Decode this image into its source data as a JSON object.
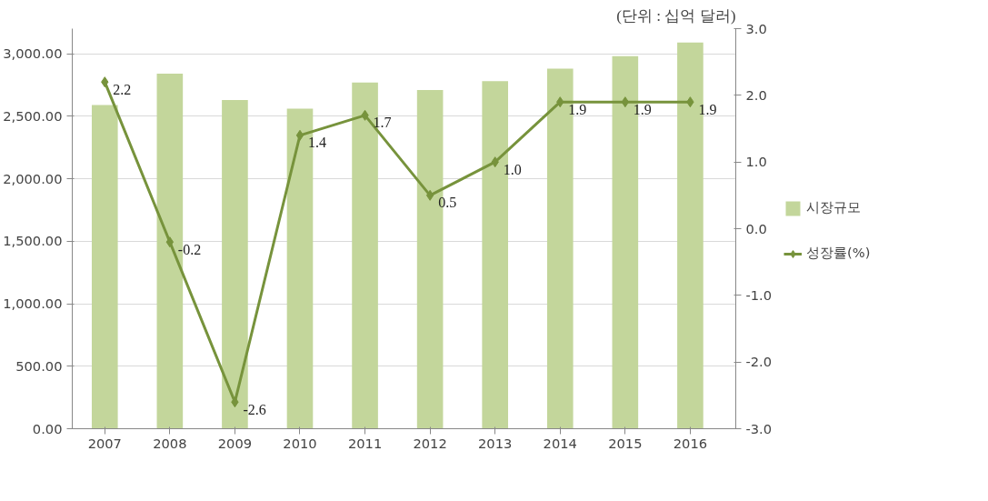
{
  "chart_data": {
    "type": "bar",
    "categories": [
      "2007",
      "2008",
      "2009",
      "2010",
      "2011",
      "2012",
      "2013",
      "2014",
      "2015",
      "2016"
    ],
    "series": [
      {
        "name": "시장규모",
        "color": "#c3d69b",
        "values": [
          2590,
          2840,
          2630,
          2560,
          2770,
          2710,
          2780,
          2880,
          2980,
          3090
        ]
      },
      {
        "name": "성장률(%)",
        "type": "line",
        "axis": "y2",
        "color": "#77933c",
        "marker": "diamond",
        "values": [
          2.2,
          -0.2,
          -2.6,
          1.4,
          1.7,
          0.5,
          1.0,
          1.9,
          1.9,
          1.9
        ],
        "value_labels": [
          "2.2",
          "-0.2",
          "-2.6",
          "1.4",
          "1.7",
          "0.5",
          "1.0",
          "1.9",
          "1.9",
          "1.9"
        ]
      }
    ],
    "ylim": [
      0,
      3200
    ],
    "yticks": [
      {
        "value": 0,
        "label": "0.00"
      },
      {
        "value": 500,
        "label": "500.00"
      },
      {
        "value": 1000,
        "label": "1,000.00"
      },
      {
        "value": 1500,
        "label": "1,500.00"
      },
      {
        "value": 2000,
        "label": "2,000.00"
      },
      {
        "value": 2500,
        "label": "2,500.00"
      },
      {
        "value": 3000,
        "label": "3,000.00"
      }
    ],
    "y2lim": [
      -3,
      3
    ],
    "y2ticks": [
      {
        "value": -3,
        "label": "-3.0"
      },
      {
        "value": -2,
        "label": "-2.0"
      },
      {
        "value": -1,
        "label": "-1.0"
      },
      {
        "value": 0,
        "label": "0.0"
      },
      {
        "value": 1,
        "label": "1.0"
      },
      {
        "value": 2,
        "label": "2.0"
      },
      {
        "value": 3,
        "label": "3.0"
      }
    ],
    "grid": "y",
    "legend": "right",
    "annotations": [
      "(단위 : 십억 달러)"
    ]
  }
}
